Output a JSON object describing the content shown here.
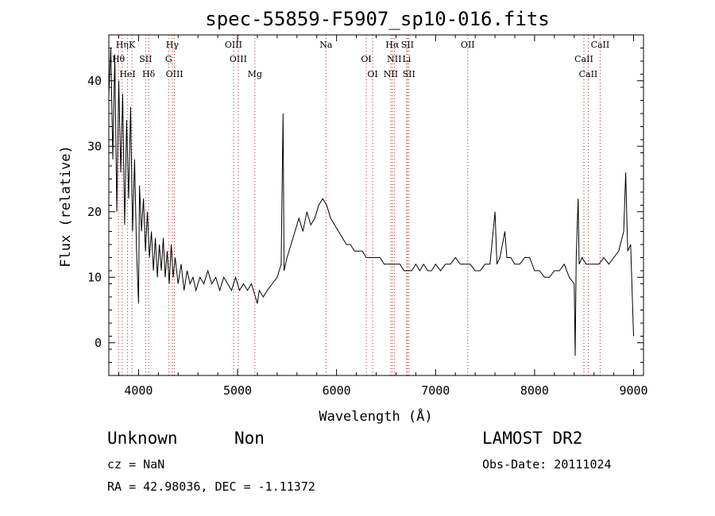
{
  "chart_data": {
    "type": "line",
    "title": "spec-55859-F5907_sp10-016.fits",
    "xlabel": "Wavelength (Å)",
    "ylabel": "Flux (relative)",
    "xlim": [
      3700,
      9100
    ],
    "ylim": [
      -5,
      47
    ],
    "xticks": [
      4000,
      5000,
      6000,
      7000,
      8000,
      9000
    ],
    "yticks": [
      0,
      10,
      20,
      30,
      40
    ],
    "grid": false,
    "series": [
      {
        "points": [
          [
            3700,
            38
          ],
          [
            3720,
            45
          ],
          [
            3740,
            28
          ],
          [
            3760,
            44
          ],
          [
            3780,
            20
          ],
          [
            3800,
            40
          ],
          [
            3820,
            26
          ],
          [
            3840,
            38
          ],
          [
            3860,
            18
          ],
          [
            3880,
            34
          ],
          [
            3900,
            22
          ],
          [
            3920,
            36
          ],
          [
            3940,
            17
          ],
          [
            3960,
            28
          ],
          [
            3980,
            14
          ],
          [
            4000,
            6
          ],
          [
            4010,
            24
          ],
          [
            4030,
            17
          ],
          [
            4050,
            22
          ],
          [
            4070,
            14
          ],
          [
            4090,
            20
          ],
          [
            4110,
            13
          ],
          [
            4130,
            17
          ],
          [
            4150,
            11
          ],
          [
            4170,
            16
          ],
          [
            4190,
            10
          ],
          [
            4210,
            15
          ],
          [
            4230,
            11
          ],
          [
            4250,
            16
          ],
          [
            4270,
            10
          ],
          [
            4290,
            14
          ],
          [
            4310,
            9
          ],
          [
            4330,
            15
          ],
          [
            4350,
            10
          ],
          [
            4370,
            13
          ],
          [
            4400,
            9
          ],
          [
            4430,
            12
          ],
          [
            4460,
            8
          ],
          [
            4490,
            11
          ],
          [
            4520,
            9
          ],
          [
            4550,
            10
          ],
          [
            4580,
            8
          ],
          [
            4620,
            10
          ],
          [
            4660,
            9
          ],
          [
            4700,
            11
          ],
          [
            4740,
            9
          ],
          [
            4780,
            10
          ],
          [
            4820,
            8
          ],
          [
            4860,
            10
          ],
          [
            4900,
            9
          ],
          [
            4940,
            8
          ],
          [
            4980,
            10
          ],
          [
            5020,
            8
          ],
          [
            5060,
            9
          ],
          [
            5100,
            8
          ],
          [
            5140,
            9
          ],
          [
            5180,
            7
          ],
          [
            5200,
            6
          ],
          [
            5220,
            8
          ],
          [
            5260,
            7
          ],
          [
            5300,
            8
          ],
          [
            5350,
            9
          ],
          [
            5400,
            10
          ],
          [
            5440,
            12
          ],
          [
            5460,
            35
          ],
          [
            5470,
            11
          ],
          [
            5500,
            13
          ],
          [
            5540,
            15
          ],
          [
            5580,
            17
          ],
          [
            5620,
            19
          ],
          [
            5660,
            17
          ],
          [
            5700,
            20
          ],
          [
            5740,
            18
          ],
          [
            5780,
            19
          ],
          [
            5820,
            21
          ],
          [
            5860,
            22
          ],
          [
            5900,
            21
          ],
          [
            5940,
            19
          ],
          [
            5980,
            18
          ],
          [
            6020,
            17
          ],
          [
            6060,
            16
          ],
          [
            6100,
            15
          ],
          [
            6140,
            15
          ],
          [
            6180,
            14
          ],
          [
            6220,
            14
          ],
          [
            6260,
            14
          ],
          [
            6300,
            13
          ],
          [
            6350,
            13
          ],
          [
            6400,
            13
          ],
          [
            6440,
            13
          ],
          [
            6480,
            12
          ],
          [
            6520,
            12
          ],
          [
            6560,
            12
          ],
          [
            6600,
            12
          ],
          [
            6640,
            12
          ],
          [
            6680,
            11
          ],
          [
            6720,
            11
          ],
          [
            6760,
            11
          ],
          [
            6800,
            12
          ],
          [
            6840,
            11
          ],
          [
            6880,
            12
          ],
          [
            6920,
            11
          ],
          [
            6960,
            11
          ],
          [
            7000,
            12
          ],
          [
            7050,
            11
          ],
          [
            7100,
            12
          ],
          [
            7150,
            12
          ],
          [
            7200,
            13
          ],
          [
            7250,
            12
          ],
          [
            7300,
            12
          ],
          [
            7350,
            12
          ],
          [
            7400,
            11
          ],
          [
            7450,
            11
          ],
          [
            7500,
            12
          ],
          [
            7550,
            12
          ],
          [
            7600,
            20
          ],
          [
            7620,
            12
          ],
          [
            7650,
            13
          ],
          [
            7700,
            17
          ],
          [
            7720,
            13
          ],
          [
            7760,
            13
          ],
          [
            7800,
            12
          ],
          [
            7850,
            12
          ],
          [
            7900,
            13
          ],
          [
            7950,
            13
          ],
          [
            8000,
            11
          ],
          [
            8050,
            11
          ],
          [
            8100,
            10
          ],
          [
            8150,
            10
          ],
          [
            8200,
            11
          ],
          [
            8250,
            11
          ],
          [
            8300,
            12
          ],
          [
            8350,
            10
          ],
          [
            8400,
            9
          ],
          [
            8410,
            -2
          ],
          [
            8420,
            13
          ],
          [
            8440,
            22
          ],
          [
            8450,
            12
          ],
          [
            8480,
            13
          ],
          [
            8520,
            12
          ],
          [
            8560,
            12
          ],
          [
            8600,
            12
          ],
          [
            8650,
            12
          ],
          [
            8700,
            13
          ],
          [
            8750,
            12
          ],
          [
            8800,
            13
          ],
          [
            8850,
            14
          ],
          [
            8900,
            17
          ],
          [
            8920,
            26
          ],
          [
            8940,
            14
          ],
          [
            8970,
            15
          ],
          [
            9000,
            1
          ]
        ]
      }
    ],
    "spectral_lines": [
      {
        "label": "Hη",
        "wavelength": 3835
      },
      {
        "label": "Hθ",
        "wavelength": 3797
      },
      {
        "label": "HeI",
        "wavelength": 3889
      },
      {
        "label": "K",
        "wavelength": 3934
      },
      {
        "label": "SII",
        "wavelength": 4072
      },
      {
        "label": "Hδ",
        "wavelength": 4102
      },
      {
        "label": "Hγ",
        "wavelength": 4341
      },
      {
        "label": "G",
        "wavelength": 4304
      },
      {
        "label": "OIII",
        "wavelength": 4363
      },
      {
        "label": "OIII",
        "wavelength": 4959
      },
      {
        "label": "OIII",
        "wavelength": 5007
      },
      {
        "label": "Mg",
        "wavelength": 5175
      },
      {
        "label": "Na",
        "wavelength": 5893
      },
      {
        "label": "OI",
        "wavelength": 6300
      },
      {
        "label": "OI",
        "wavelength": 6364
      },
      {
        "label": "Hα",
        "wavelength": 6563
      },
      {
        "label": "NII",
        "wavelength": 6583
      },
      {
        "label": "NII",
        "wavelength": 6548
      },
      {
        "label": "SII",
        "wavelength": 6716
      },
      {
        "label": "Li",
        "wavelength": 6708
      },
      {
        "label": "SII",
        "wavelength": 6731
      },
      {
        "label": "OII",
        "wavelength": 7325
      },
      {
        "label": "CaII",
        "wavelength": 8498
      },
      {
        "label": "CaII",
        "wavelength": 8542
      },
      {
        "label": "CaII",
        "wavelength": 8662
      }
    ]
  },
  "info": {
    "class": "Unknown",
    "subclass": "Non",
    "cz": "cz = NaN",
    "coords": "RA =  42.98036, DEC =  -1.11372",
    "survey": "LAMOST DR2",
    "obs_date": "Obs-Date: 20111024"
  }
}
